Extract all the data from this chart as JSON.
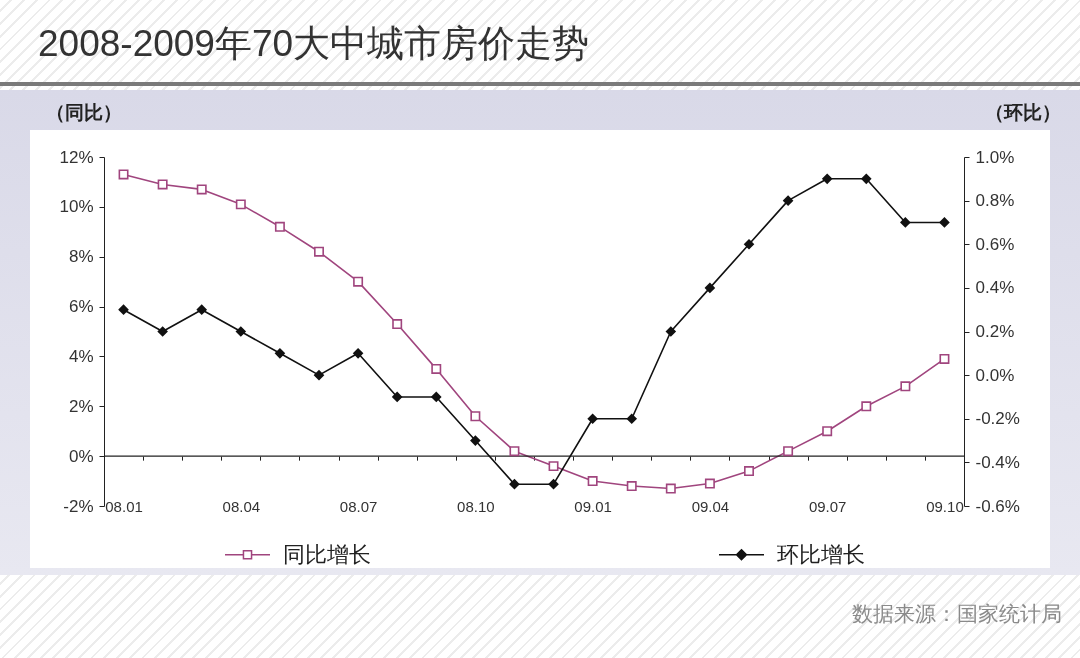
{
  "chart_data": {
    "type": "line",
    "title": "2008-2009年70大中城市房价走势",
    "ylabel": "（同比）",
    "y2label": "（环比）",
    "categories": [
      "08.01",
      null,
      null,
      "08.04",
      null,
      null,
      "08.07",
      null,
      null,
      "08.10",
      null,
      null,
      "09.01",
      null,
      null,
      "09.04",
      null,
      null,
      "09.07",
      null,
      null,
      "09.10"
    ],
    "series": [
      {
        "name": "同比增长",
        "color": "#a0457e",
        "marker": "square",
        "values": [
          11.3,
          10.9,
          10.7,
          10.1,
          9.2,
          8.2,
          7.0,
          5.3,
          3.5,
          1.6,
          0.2,
          -0.4,
          -1.0,
          -1.2,
          -1.3,
          -1.1,
          -0.6,
          0.2,
          1.0,
          2.0,
          2.8,
          3.9
        ]
      },
      {
        "name": "环比增长",
        "color": "#111111",
        "marker": "diamond",
        "axis": "y2",
        "values": [
          0.3,
          0.2,
          0.3,
          0.2,
          0.1,
          0.0,
          0.1,
          -0.1,
          -0.1,
          -0.3,
          -0.5,
          -0.5,
          -0.2,
          -0.2,
          0.2,
          0.4,
          0.6,
          0.8,
          0.9,
          0.9,
          0.7,
          0.7
        ]
      }
    ],
    "ylim": [
      -2,
      12
    ],
    "yticks": [
      {
        "value": -2,
        "label": "-2%"
      },
      {
        "value": 0,
        "label": "0%"
      },
      {
        "value": 2,
        "label": "2%"
      },
      {
        "value": 4,
        "label": "4%"
      },
      {
        "value": 6,
        "label": "6%"
      },
      {
        "value": 8,
        "label": "8%"
      },
      {
        "value": 10,
        "label": "10%"
      },
      {
        "value": 12,
        "label": "12%"
      }
    ],
    "y2lim": [
      -0.6,
      1.0
    ],
    "y2ticks": [
      {
        "value": -0.6,
        "label": "-0.6%"
      },
      {
        "value": -0.4,
        "label": "-0.4%"
      },
      {
        "value": -0.2,
        "label": "-0.2%"
      },
      {
        "value": 0,
        "label": "0.0%"
      },
      {
        "value": 0.2,
        "label": "0.2%"
      },
      {
        "value": 0.4,
        "label": "0.4%"
      },
      {
        "value": 0.6,
        "label": "0.6%"
      },
      {
        "value": 0.8,
        "label": "0.8%"
      },
      {
        "value": 1.0,
        "label": "1.0%"
      }
    ],
    "ref_lines": [
      {
        "axis": "y",
        "value": 0,
        "color": "#222222"
      }
    ],
    "legend": "bottom",
    "annotations": [
      "数据来源：国家统计局"
    ]
  }
}
